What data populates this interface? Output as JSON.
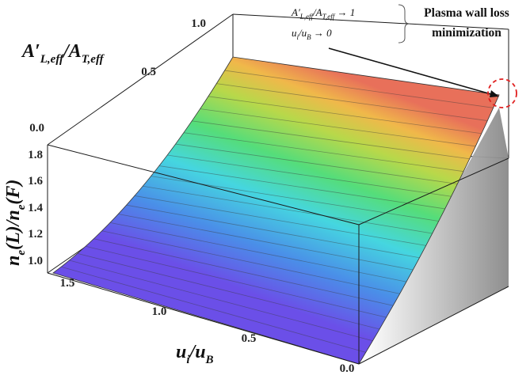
{
  "chart_data": {
    "type": "surface3d",
    "xlabel": "u_i/u_B",
    "ylabel": "A'_{L,eff}/A_{T,eff}",
    "zlabel": "n_e(L)/n_e(F)",
    "x_ticks": [
      "1.5",
      "1.0",
      "0.5",
      "0.0"
    ],
    "y_ticks": [
      "0.0",
      "0.5",
      "1.0"
    ],
    "z_ticks": [
      "1.0",
      "1.2",
      "1.4",
      "1.6",
      "1.8"
    ],
    "xlim": [
      0,
      1.5
    ],
    "ylim": [
      0,
      1.0
    ],
    "zlim": [
      0.95,
      1.9
    ],
    "surface_samples": [
      {
        "x": 1.5,
        "y": 0.0,
        "z": 1.0
      },
      {
        "x": 1.5,
        "y": 1.0,
        "z": 1.0
      },
      {
        "x": 0.0,
        "y": 0.0,
        "z": 1.0
      },
      {
        "x": 0.0,
        "y": 1.0,
        "z": 1.9
      }
    ],
    "colormap": [
      "#6b4fe8",
      "#4a8fe8",
      "#45d6e0",
      "#55dd7a",
      "#b8d84a",
      "#f0b84a",
      "#e8705a"
    ],
    "annotations": {
      "conditions": [
        "A'_{L,eff}/A_{T,eff} → 1",
        "u_i/u_B → 0"
      ],
      "title_lines": [
        "Plasma wall loss",
        "minimization"
      ]
    }
  }
}
